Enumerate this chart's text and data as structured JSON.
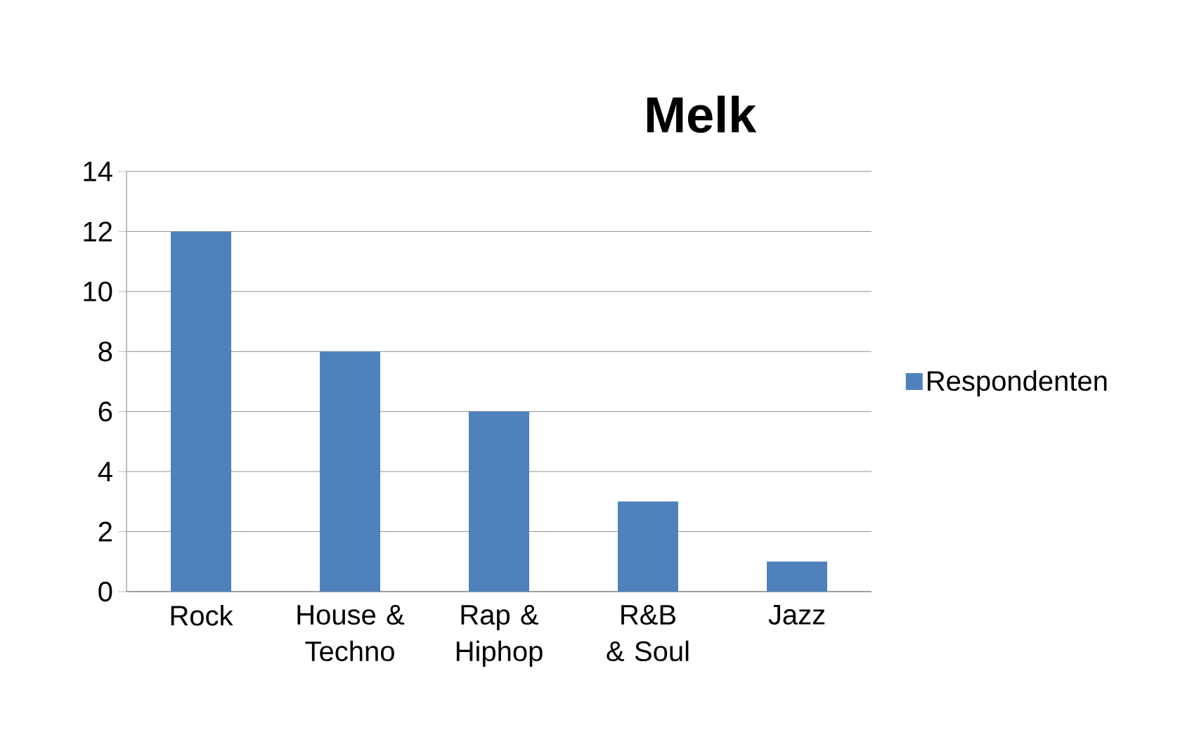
{
  "chart_data": {
    "type": "bar",
    "title": "Melk",
    "categories": [
      "Rock",
      "House & Techno",
      "Rap & Hiphop",
      "R&B & Soul",
      "Jazz"
    ],
    "series": [
      {
        "name": "Respondenten",
        "color": "#4f81bd",
        "values": [
          12,
          8,
          6,
          3,
          1
        ]
      }
    ],
    "ylim": [
      0,
      14
    ],
    "yticks": [
      0,
      2,
      4,
      6,
      8,
      10,
      12,
      14
    ],
    "grid": "y",
    "legend": "right"
  }
}
